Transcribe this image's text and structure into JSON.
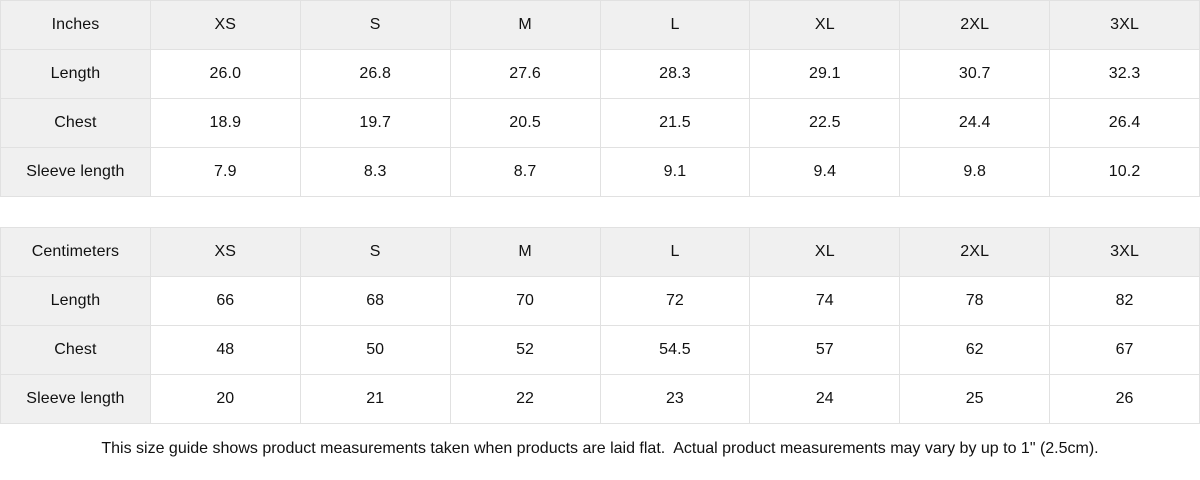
{
  "page": {
    "note": "This size guide shows product measurements taken when products are laid flat.  Actual product measurements may vary by up to 1\" (2.5cm)."
  },
  "colors": {
    "header_bg": "#f0f0f0",
    "border": "#e1e1e1",
    "text": "#111111",
    "background": "#ffffff"
  },
  "tables": [
    {
      "name": "inches",
      "unit_label": "Inches",
      "columns": [
        "XS",
        "S",
        "M",
        "L",
        "XL",
        "2XL",
        "3XL"
      ],
      "rows": [
        {
          "label": "Length",
          "values": [
            "26.0",
            "26.8",
            "27.6",
            "28.3",
            "29.1",
            "30.7",
            "32.3"
          ]
        },
        {
          "label": "Chest",
          "values": [
            "18.9",
            "19.7",
            "20.5",
            "21.5",
            "22.5",
            "24.4",
            "26.4"
          ]
        },
        {
          "label": "Sleeve length",
          "values": [
            "7.9",
            "8.3",
            "8.7",
            "9.1",
            "9.4",
            "9.8",
            "10.2"
          ]
        }
      ]
    },
    {
      "name": "centimeters",
      "unit_label": "Centimeters",
      "columns": [
        "XS",
        "S",
        "M",
        "L",
        "XL",
        "2XL",
        "3XL"
      ],
      "rows": [
        {
          "label": "Length",
          "values": [
            "66",
            "68",
            "70",
            "72",
            "74",
            "78",
            "82"
          ]
        },
        {
          "label": "Chest",
          "values": [
            "48",
            "50",
            "52",
            "54.5",
            "57",
            "62",
            "67"
          ]
        },
        {
          "label": "Sleeve length",
          "values": [
            "20",
            "21",
            "22",
            "23",
            "24",
            "25",
            "26"
          ]
        }
      ]
    }
  ],
  "chart_data": [
    {
      "type": "table",
      "title": "Inches",
      "categories": [
        "XS",
        "S",
        "M",
        "L",
        "XL",
        "2XL",
        "3XL"
      ],
      "series": [
        {
          "name": "Length",
          "values": [
            26.0,
            26.8,
            27.6,
            28.3,
            29.1,
            30.7,
            32.3
          ]
        },
        {
          "name": "Chest",
          "values": [
            18.9,
            19.7,
            20.5,
            21.5,
            22.5,
            24.4,
            26.4
          ]
        },
        {
          "name": "Sleeve length",
          "values": [
            7.9,
            8.3,
            8.7,
            9.1,
            9.4,
            9.8,
            10.2
          ]
        }
      ]
    },
    {
      "type": "table",
      "title": "Centimeters",
      "categories": [
        "XS",
        "S",
        "M",
        "L",
        "XL",
        "2XL",
        "3XL"
      ],
      "series": [
        {
          "name": "Length",
          "values": [
            66,
            68,
            70,
            72,
            74,
            78,
            82
          ]
        },
        {
          "name": "Chest",
          "values": [
            48,
            50,
            52,
            54.5,
            57,
            62,
            67
          ]
        },
        {
          "name": "Sleeve length",
          "values": [
            20,
            21,
            22,
            23,
            24,
            25,
            26
          ]
        }
      ]
    }
  ]
}
